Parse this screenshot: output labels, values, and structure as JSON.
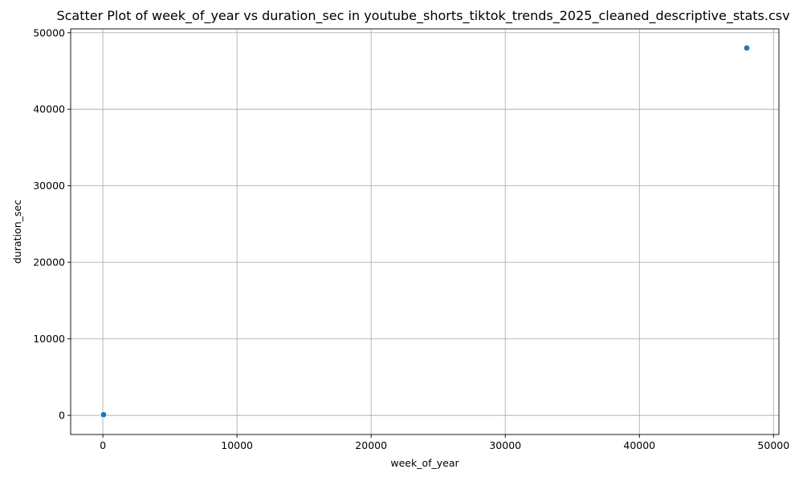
{
  "chart_data": {
    "type": "scatter",
    "title": "Scatter Plot of week_of_year vs duration_sec in youtube_shorts_tiktok_trends_2025_cleaned_descriptive_stats.csv",
    "xlabel": "week_of_year",
    "ylabel": "duration_sec",
    "xlim": [
      -2400,
      50400
    ],
    "ylim": [
      -2500,
      50500
    ],
    "x_ticks": [
      0,
      10000,
      20000,
      30000,
      40000,
      50000
    ],
    "y_ticks": [
      0,
      10000,
      20000,
      30000,
      40000,
      50000
    ],
    "grid": true,
    "marker_color": "#1f77b4",
    "points": [
      {
        "x": 48000,
        "y": 48000
      },
      {
        "x": 26,
        "y": 48
      },
      {
        "x": 14,
        "y": 36
      },
      {
        "x": 1,
        "y": 5
      },
      {
        "x": 13,
        "y": 30
      },
      {
        "x": 26,
        "y": 45
      },
      {
        "x": 39,
        "y": 60
      },
      {
        "x": 52,
        "y": 90
      }
    ]
  }
}
